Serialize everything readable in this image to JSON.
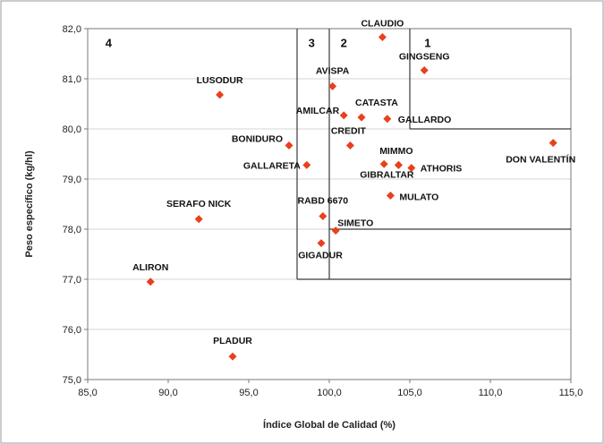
{
  "chart_data": {
    "type": "scatter",
    "xlabel": "Índice Global de Calidad (%)",
    "ylabel": "Peso específico (kg/hl)",
    "xlim": [
      85.0,
      115.0
    ],
    "ylim": [
      75.0,
      82.0
    ],
    "x_ticks": [
      "85,0",
      "90,0",
      "95,0",
      "100,0",
      "105,0",
      "110,0",
      "115,0"
    ],
    "y_ticks": [
      "75,0",
      "76,0",
      "77,0",
      "78,0",
      "79,0",
      "80,0",
      "81,0",
      "82,0"
    ],
    "marker_color": "#e8401c",
    "grid": true,
    "points": [
      {
        "name": "CLAUDIO",
        "x": 103.3,
        "y": 81.83
      },
      {
        "name": "GINGSENG",
        "x": 105.9,
        "y": 81.17
      },
      {
        "name": "LUSODUR",
        "x": 93.2,
        "y": 80.68
      },
      {
        "name": "AVISPA",
        "x": 100.2,
        "y": 80.85
      },
      {
        "name": "CATASTA",
        "x": 102.0,
        "y": 80.23
      },
      {
        "name": "AMILCAR",
        "x": 100.9,
        "y": 80.27
      },
      {
        "name": "GALLARDO",
        "x": 103.6,
        "y": 80.2
      },
      {
        "name": "BONIDURO",
        "x": 97.5,
        "y": 79.67
      },
      {
        "name": "CREDIT",
        "x": 101.3,
        "y": 79.67
      },
      {
        "name": "GALLARETA",
        "x": 98.6,
        "y": 79.28
      },
      {
        "name": "MIMMO",
        "x": 103.4,
        "y": 79.3
      },
      {
        "name": "",
        "x": 104.3,
        "y": 79.28
      },
      {
        "name": "ATHORIS",
        "x": 105.1,
        "y": 79.22
      },
      {
        "name": "GIBRALTAR",
        "x": 104.3,
        "y": 79.28
      },
      {
        "name": "DON VALENTÍN",
        "x": 113.9,
        "y": 79.72
      },
      {
        "name": "MULATO",
        "x": 103.8,
        "y": 78.67
      },
      {
        "name": "SERAFO NICK",
        "x": 91.9,
        "y": 78.2
      },
      {
        "name": "RABD 6670",
        "x": 99.6,
        "y": 78.26
      },
      {
        "name": "SIMETO",
        "x": 100.4,
        "y": 77.97
      },
      {
        "name": "GIGADUR",
        "x": 99.5,
        "y": 77.72
      },
      {
        "name": "ALIRON",
        "x": 88.9,
        "y": 76.95
      },
      {
        "name": "PLADUR",
        "x": 94.0,
        "y": 75.46
      }
    ],
    "quadrants": [
      {
        "label": "4",
        "x": 86.1,
        "y": 81.72
      },
      {
        "label": "3",
        "x": 98.7,
        "y": 81.72
      },
      {
        "label": "2",
        "x": 100.7,
        "y": 81.72
      },
      {
        "label": "1",
        "x": 105.9,
        "y": 81.72
      }
    ],
    "zone_lines": [
      {
        "x1": 98.0,
        "y1": 82.0,
        "x2": 98.0,
        "y2": 77.0
      },
      {
        "x1": 100.0,
        "y1": 82.0,
        "x2": 100.0,
        "y2": 77.0
      },
      {
        "x1": 105.0,
        "y1": 82.0,
        "x2": 105.0,
        "y2": 80.0
      },
      {
        "x1": 98.0,
        "y1": 77.0,
        "x2": 115.0,
        "y2": 77.0
      },
      {
        "x1": 100.0,
        "y1": 78.0,
        "x2": 115.0,
        "y2": 78.0
      },
      {
        "x1": 105.0,
        "y1": 80.0,
        "x2": 115.0,
        "y2": 80.0
      }
    ]
  }
}
